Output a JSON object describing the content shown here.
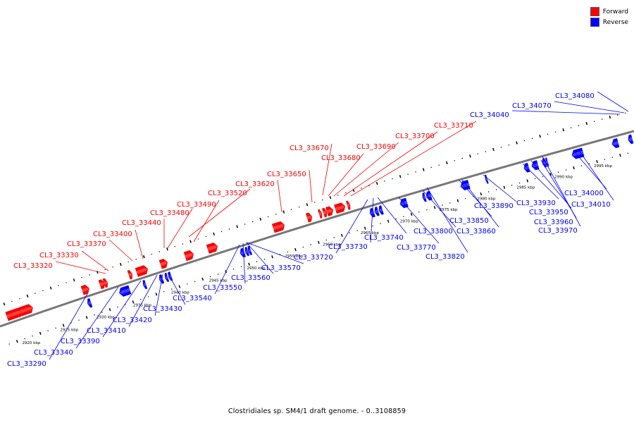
{
  "colors": {
    "forward": "#ff0000",
    "reverse": "#0000ff",
    "backbone": "#777777"
  },
  "legend": {
    "forward_label": "Forward",
    "reverse_label": "Reverse"
  },
  "caption": "Clostridiales sp. SM4/1 draft genome. - 0..3108859",
  "ticks": [
    "2920 kbp",
    "2925 kbp",
    "2930 kbp",
    "2935 kbp",
    "2940 kbp",
    "2945 kbp",
    "2950 kbp",
    "2955 kbp",
    "2960 kbp",
    "2965 kbp",
    "2970 kbp",
    "2975 kbp",
    "2980 kbp",
    "2985 kbp",
    "2990 kbp",
    "2995 kbp"
  ],
  "forward_labels": [
    "CL3_33320",
    "CL3_33330",
    "CL3_33370",
    "CL3_33400",
    "CL3_33440",
    "CL3_33480",
    "CL3_33490",
    "CL3_33520",
    "CL3_33620",
    "CL3_33650",
    "CL3_33670",
    "CL3_33680",
    "CL3_33690",
    "CL3_33700",
    "CL3_33710"
  ],
  "reverse_labels": [
    "CL3_33290",
    "CL3_33340",
    "CL3_33390",
    "CL3_33410",
    "CL3_33420",
    "CL3_33430",
    "CL3_33540",
    "CL3_33550",
    "CL3_33560",
    "CL3_33570",
    "CL3_33720",
    "CL3_33730",
    "CL3_33740",
    "CL3_33770",
    "CL3_33800",
    "CL3_33820",
    "CL3_33850",
    "CL3_33860",
    "CL3_33890",
    "CL3_33930",
    "CL3_33950",
    "CL3_33960",
    "CL3_33970",
    "CL3_34000",
    "CL3_34010",
    "CL3_34040",
    "CL3_34070",
    "CL3_34080"
  ]
}
